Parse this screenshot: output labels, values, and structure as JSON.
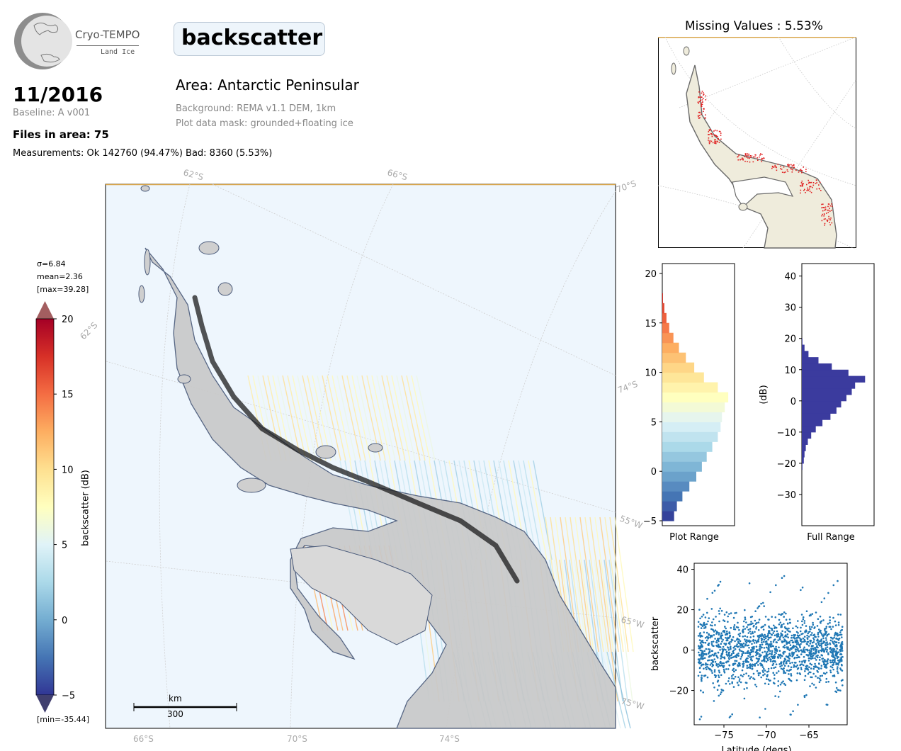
{
  "logo": {
    "name": "Cryo-TEMPO",
    "sub": "Land Ice"
  },
  "header": {
    "title": "backscatter",
    "date": "11/2016",
    "baseline": "Baseline: A v001",
    "files": "Files in area: 75",
    "measurements": "Measurements: Ok 142760 (94.47%) Bad: 8360 (5.53%)",
    "area": "Area: Antarctic Peninsular",
    "background": "Background: REMA v1.1 DEM, 1km",
    "mask": "Plot data mask: grounded+floating ice"
  },
  "colorbar": {
    "stats": [
      "σ=6.84",
      "mean=2.36",
      "[max=39.28]"
    ],
    "min_label": "[min=-35.44]",
    "label": "backscatter (dB)",
    "ticks": [
      "20",
      "15",
      "10",
      "5",
      "0",
      "−5"
    ],
    "range": [
      -5,
      20
    ],
    "colors": [
      "#313695",
      "#4575b4",
      "#74add1",
      "#abd9e9",
      "#e0f3f8",
      "#ffffbf",
      "#fee090",
      "#fdae61",
      "#f46d43",
      "#d73027",
      "#a50026"
    ],
    "under_color": "#403f6f",
    "over_color": "#a35e60"
  },
  "map": {
    "lat_labels_top": [
      "62°S",
      "66°S",
      "70°S"
    ],
    "lat_labels_bottom": [
      "66°S",
      "70°S",
      "74°S"
    ],
    "lat_labels_left": [
      "62°S"
    ],
    "lon_labels_right": [
      "74°S",
      "55°W",
      "65°W",
      "75°W"
    ],
    "scalebar_unit": "km",
    "scalebar_value": "300"
  },
  "inset": {
    "title": "Missing Values : 5.53%"
  },
  "hist_plot": {
    "xlabel": "Plot Range",
    "yticks": [
      "20",
      "15",
      "10",
      "5",
      "0",
      "−5"
    ]
  },
  "hist_full": {
    "xlabel": "Full Range",
    "ylabel": "(dB)",
    "yticks": [
      "40",
      "30",
      "20",
      "10",
      "0",
      "−10",
      "−20",
      "−30"
    ]
  },
  "scatter": {
    "xlabel": "Latitude (degs)",
    "ylabel": "backscatter",
    "xticks": [
      "−75",
      "−70",
      "−65"
    ],
    "yticks": [
      "40",
      "20",
      "0",
      "−20"
    ]
  },
  "chart_data": [
    {
      "type": "heatmap",
      "title": "backscatter",
      "colorbar_label": "backscatter (dB)",
      "range": [
        -5,
        20
      ],
      "stats": {
        "std": 6.84,
        "mean": 2.36,
        "max": 39.28,
        "min": -35.44
      }
    },
    {
      "type": "bar",
      "title": "Plot Range",
      "orientation": "horizontal",
      "bins_db": [
        -5,
        -4,
        -3,
        -2,
        -1,
        0,
        1,
        2,
        3,
        4,
        5,
        6,
        7,
        8,
        9,
        10,
        11,
        12,
        13,
        14,
        15,
        16,
        17
      ],
      "relative_counts": [
        0.17,
        0.21,
        0.29,
        0.39,
        0.49,
        0.57,
        0.64,
        0.72,
        0.8,
        0.84,
        0.86,
        0.9,
        0.95,
        0.8,
        0.6,
        0.46,
        0.34,
        0.24,
        0.16,
        0.1,
        0.06,
        0.03,
        0.01
      ],
      "ylim": [
        -5.5,
        21
      ]
    },
    {
      "type": "bar",
      "title": "Full Range",
      "orientation": "horizontal",
      "ylabel": "(dB)",
      "bins_db": [
        -22,
        -20,
        -18,
        -16,
        -14,
        -12,
        -10,
        -8,
        -6,
        -4,
        -2,
        0,
        2,
        4,
        6,
        8,
        10,
        12,
        14,
        16,
        18
      ],
      "relative_counts": [
        0.01,
        0.03,
        0.04,
        0.06,
        0.09,
        0.14,
        0.21,
        0.31,
        0.43,
        0.52,
        0.59,
        0.67,
        0.75,
        0.8,
        0.95,
        0.7,
        0.45,
        0.25,
        0.1,
        0.04,
        0.01
      ],
      "ylim": [
        -40,
        44
      ]
    },
    {
      "type": "scatter",
      "xlabel": "Latitude (degs)",
      "ylabel": "backscatter",
      "xlim": [
        -78.5,
        -60.5
      ],
      "ylim": [
        -37,
        43
      ],
      "x_range": [
        -78,
        -61
      ],
      "y_core": [
        -15,
        15
      ],
      "y_extremes": [
        -35,
        38
      ],
      "color": "#1f77b4"
    }
  ]
}
